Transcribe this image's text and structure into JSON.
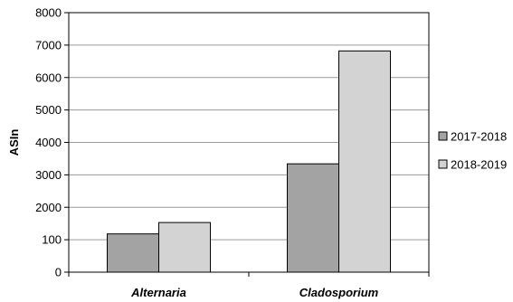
{
  "chart_data": {
    "type": "bar",
    "title": "",
    "xlabel": "",
    "ylabel": "ASIn",
    "categories": [
      "Alternaria",
      "Cladosporium"
    ],
    "series": [
      {
        "name": "2017-2018",
        "values": [
          1180,
          3340
        ],
        "color": "#a3a3a3"
      },
      {
        "name": "2018-2019",
        "values": [
          1530,
          6820
        ],
        "color": "#d3d3d3"
      }
    ],
    "y_ticks": [
      0,
      100,
      2000,
      3000,
      4000,
      5000,
      6000,
      7000,
      8000
    ],
    "y_tick_labels": [
      "0",
      "100",
      "2000",
      "3000",
      "4000",
      "5000",
      "6000",
      "7000",
      "8000"
    ],
    "ylim": [
      0,
      8000
    ],
    "grid": true,
    "legend": "right"
  }
}
